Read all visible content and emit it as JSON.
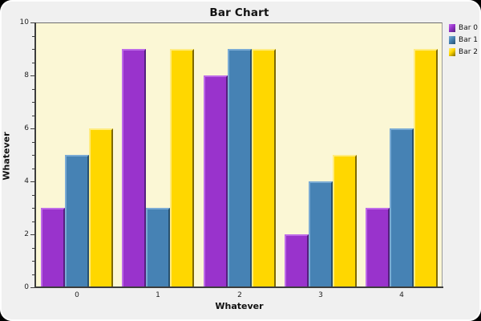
{
  "window": {
    "outer_background": "#000000",
    "frame_background": "#f0f0f0",
    "frame_highlight": "#ffffff"
  },
  "chart_data": {
    "type": "bar",
    "title": "Bar Chart",
    "xlabel": "Whatever",
    "ylabel": "Whatever",
    "categories": [
      "0",
      "1",
      "2",
      "3",
      "4"
    ],
    "series": [
      {
        "name": "Bar 0",
        "color": "#9933CC",
        "color_light": "#BE6BE8",
        "color_dark": "#55207E",
        "values": [
          3,
          9,
          8,
          2,
          3
        ]
      },
      {
        "name": "Bar 1",
        "color": "#4682B4",
        "color_light": "#7AABD4",
        "color_dark": "#28506F",
        "values": [
          5,
          3,
          9,
          4,
          6
        ]
      },
      {
        "name": "Bar 2",
        "color": "#FFD700",
        "color_light": "#FFEC80",
        "color_dark": "#7E6900",
        "values": [
          6,
          9,
          9,
          5,
          9
        ]
      }
    ],
    "ylim": [
      0,
      10
    ],
    "y_major_ticks": [
      0,
      2,
      4,
      6,
      8,
      10
    ],
    "y_minor_step": 0.5,
    "grid": false,
    "legend_position": "top-right",
    "plot_background": "#FBF7D5",
    "axis_color": "#3d3d3d"
  }
}
